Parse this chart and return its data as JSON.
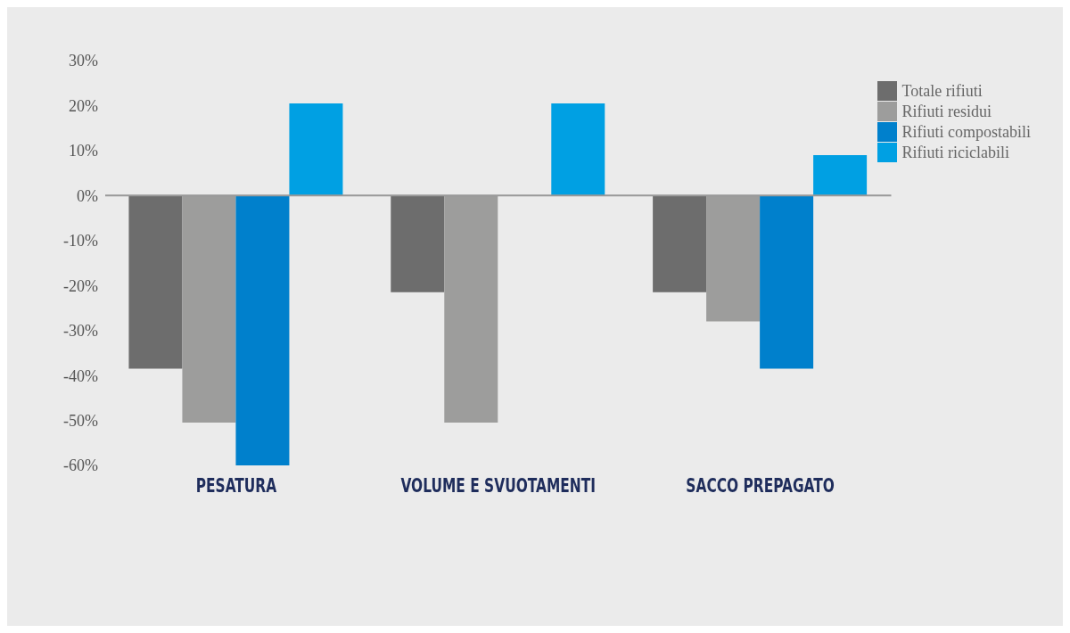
{
  "chart_data": {
    "type": "bar",
    "categories": [
      "PESATURA",
      "VOLUME E SVUOTAMENTI",
      "SACCO PREPAGATO"
    ],
    "series": [
      {
        "name": "Totale rifiuti",
        "color": "#6d6d6d",
        "values": [
          -38.5,
          -21.5,
          -21.5
        ]
      },
      {
        "name": "Rifiuti residui",
        "color": "#9d9d9c",
        "values": [
          -50.5,
          -50.5,
          -28
        ]
      },
      {
        "name": "Rifiuti compostabili",
        "color": "#0080cc",
        "values": [
          -60,
          null,
          -38.5
        ]
      },
      {
        "name": "Rifiuti riciclabili",
        "color": "#00a0e3",
        "values": [
          20.5,
          20.5,
          9
        ]
      }
    ],
    "ylim": [
      -60,
      30
    ],
    "yticks": [
      {
        "value": -60,
        "label": "-60%"
      },
      {
        "value": -50,
        "label": "-50%"
      },
      {
        "value": -40,
        "label": "-40%"
      },
      {
        "value": -30,
        "label": "-30%"
      },
      {
        "value": -20,
        "label": "-20%"
      },
      {
        "value": -10,
        "label": "-10%"
      },
      {
        "value": 0,
        "label": "0%"
      },
      {
        "value": 10,
        "label": "10%"
      },
      {
        "value": 20,
        "label": "20%"
      },
      {
        "value": 30,
        "label": "30%"
      }
    ],
    "ref_lines": [
      {
        "axis": "y",
        "value": 0,
        "color": "#999999"
      }
    ],
    "grid": false,
    "legend": "top right"
  }
}
